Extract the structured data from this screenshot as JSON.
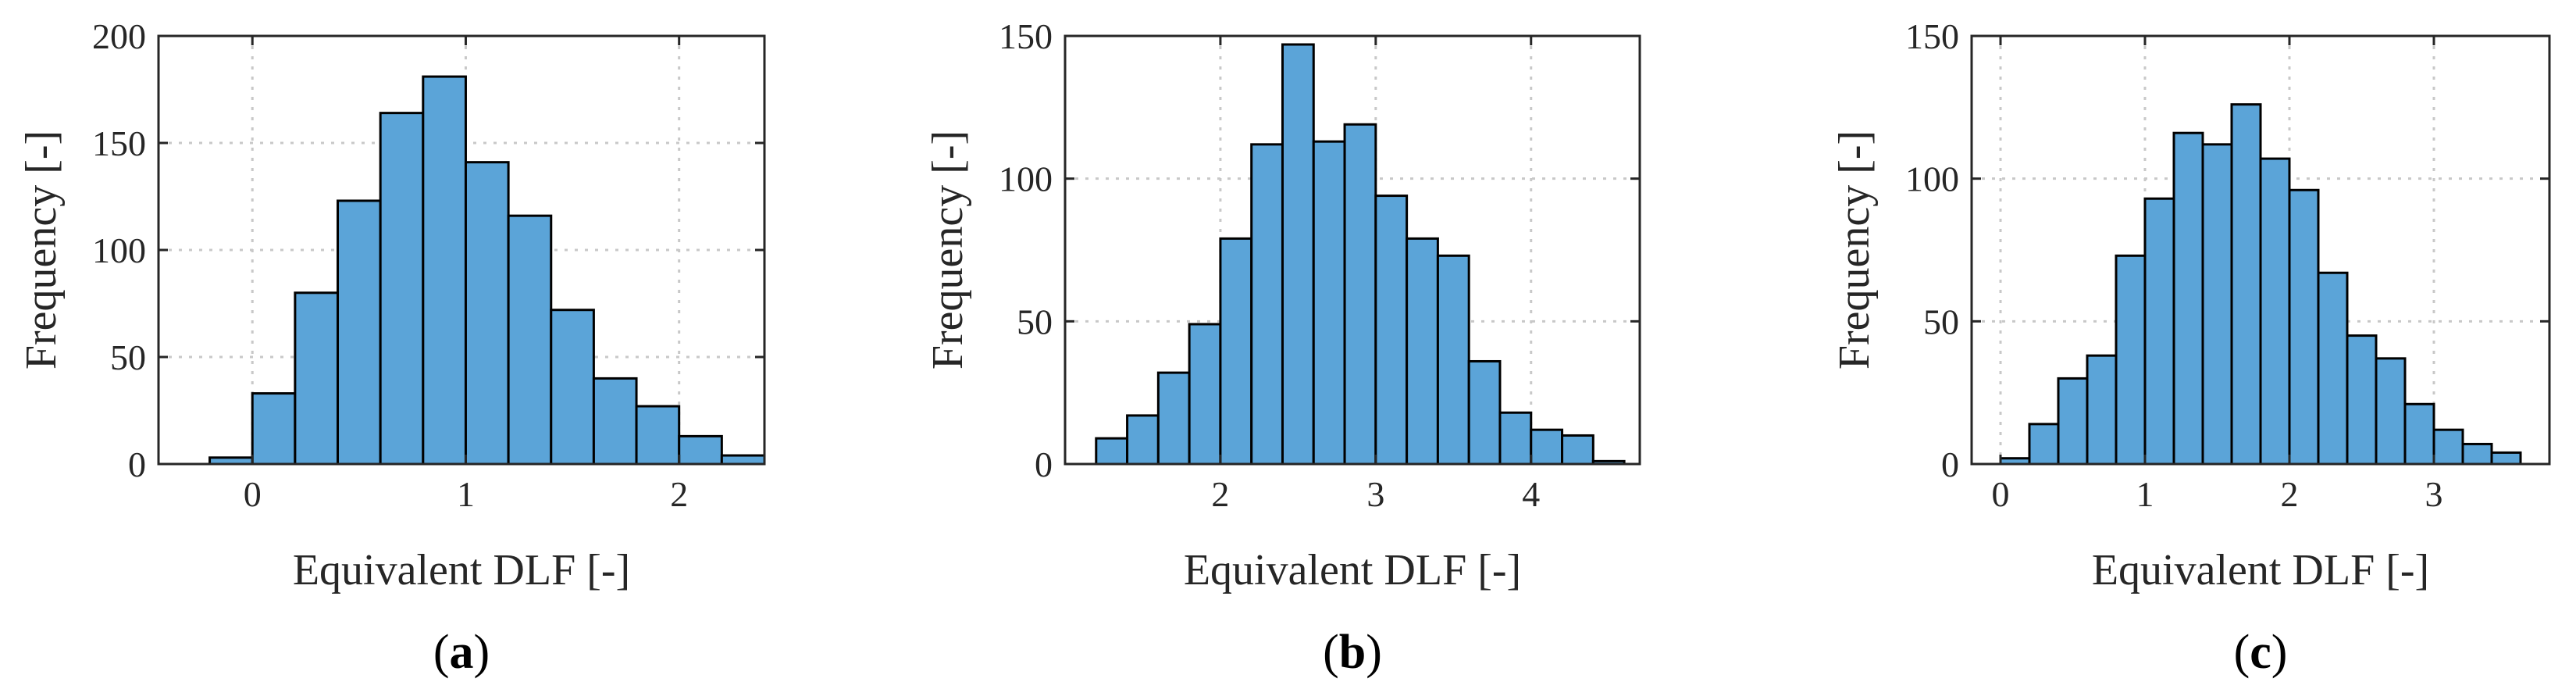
{
  "chart_data": [
    {
      "type": "bar",
      "panel_label": "(a)",
      "panel_letter": "a",
      "xlabel": "Equivalent DLF [-]",
      "ylabel": "Frequency [-]",
      "xlim": [
        -0.44,
        2.4
      ],
      "ylim": [
        0,
        200
      ],
      "xticks": [
        0,
        1,
        2
      ],
      "yticks": [
        0,
        50,
        100,
        150,
        200
      ],
      "bin_edges": [
        -0.2,
        0.0,
        0.2,
        0.4,
        0.6,
        0.8,
        1.0,
        1.2,
        1.4,
        1.6,
        1.8,
        2.0,
        2.2,
        2.4
      ],
      "values": [
        3,
        33,
        80,
        123,
        164,
        181,
        141,
        116,
        72,
        40,
        27,
        13,
        4
      ]
    },
    {
      "type": "bar",
      "panel_label": "(b)",
      "panel_letter": "b",
      "xlabel": "Equivalent DLF [-]",
      "ylabel": "Frequency [-]",
      "xlim": [
        1.0,
        4.7
      ],
      "ylim": [
        0,
        150
      ],
      "xticks": [
        2,
        3,
        4
      ],
      "yticks": [
        0,
        50,
        100,
        150
      ],
      "bin_edges": [
        1.2,
        1.4,
        1.6,
        1.8,
        2.0,
        2.2,
        2.4,
        2.6,
        2.8,
        3.0,
        3.2,
        3.4,
        3.6,
        3.8,
        4.0,
        4.2,
        4.4,
        4.6
      ],
      "values": [
        9,
        17,
        32,
        49,
        79,
        112,
        147,
        113,
        119,
        94,
        79,
        73,
        36,
        18,
        12,
        10,
        1
      ]
    },
    {
      "type": "bar",
      "panel_label": "(c)",
      "panel_letter": "c",
      "xlabel": "Equivalent DLF [-]",
      "ylabel": "Frequency [-]",
      "xlim": [
        -0.2,
        3.8
      ],
      "ylim": [
        0,
        150
      ],
      "xticks": [
        0,
        1,
        2,
        3
      ],
      "yticks": [
        0,
        50,
        100,
        150
      ],
      "bin_edges": [
        0.0,
        0.2,
        0.4,
        0.6,
        0.8,
        1.0,
        1.2,
        1.4,
        1.6,
        1.8,
        2.0,
        2.2,
        2.4,
        2.6,
        2.8,
        3.0,
        3.2,
        3.4,
        3.6
      ],
      "values": [
        2,
        14,
        30,
        38,
        73,
        93,
        116,
        112,
        126,
        107,
        96,
        67,
        45,
        37,
        21,
        12,
        7,
        4
      ]
    }
  ]
}
